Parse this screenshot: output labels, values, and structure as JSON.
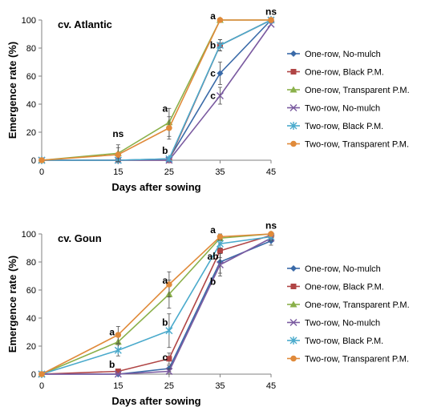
{
  "colors": {
    "one_row_no_mulch": "#3a6aa8",
    "one_row_black": "#b04545",
    "one_row_transparent": "#8ab04a",
    "two_row_no_mulch": "#7a5aa0",
    "two_row_black": "#4aaacc",
    "two_row_transparent": "#e08a3a"
  },
  "chart_data": [
    {
      "type": "line",
      "title": "cv. Atlantic",
      "xlabel": "Days after sowing",
      "ylabel": "Emergence rate (%)",
      "x": [
        0,
        15,
        25,
        35,
        45
      ],
      "xlim": [
        0,
        45
      ],
      "ylim": [
        0,
        100
      ],
      "xticks": [
        "0",
        "15",
        "25",
        "35",
        "45"
      ],
      "yticks": [
        "0",
        "20",
        "40",
        "60",
        "80",
        "100"
      ],
      "grid": false,
      "legend_position": "right",
      "series": [
        {
          "name": "One-row, No-mulch",
          "marker": "diamond",
          "color_key": "one_row_no_mulch",
          "values": [
            0,
            0,
            1,
            62,
            100
          ],
          "errors": [
            0,
            0,
            0,
            8,
            0
          ]
        },
        {
          "name": "One-row, Black P.M.",
          "marker": "square",
          "color_key": "one_row_black",
          "values": [
            0,
            0,
            0,
            82,
            100
          ],
          "errors": [
            0,
            0,
            0,
            4,
            0
          ]
        },
        {
          "name": "One-row, Transparent P.M.",
          "marker": "triangle",
          "color_key": "one_row_transparent",
          "values": [
            0,
            5,
            27,
            100,
            100
          ],
          "errors": [
            0,
            6,
            10,
            0,
            0
          ]
        },
        {
          "name": "Two-row, No-mulch",
          "marker": "x",
          "color_key": "two_row_no_mulch",
          "values": [
            0,
            0,
            0,
            46,
            97
          ],
          "errors": [
            0,
            0,
            0,
            6,
            0
          ]
        },
        {
          "name": "Two-row, Black P.M.",
          "marker": "star",
          "color_key": "two_row_black",
          "values": [
            0,
            0,
            1,
            82,
            100
          ],
          "errors": [
            0,
            0,
            0,
            4,
            0
          ]
        },
        {
          "name": "Two-row, Transparent P.M.",
          "marker": "circle",
          "color_key": "two_row_transparent",
          "values": [
            0,
            4,
            23,
            100,
            100
          ],
          "errors": [
            0,
            5,
            8,
            0,
            0
          ]
        }
      ],
      "annotations": [
        {
          "text": "ns",
          "x": 15,
          "y": 19
        },
        {
          "text": "a",
          "x": 24.2,
          "y": 37
        },
        {
          "text": "b",
          "x": 24.2,
          "y": 7
        },
        {
          "text": "a",
          "x": 33.6,
          "y": 103
        },
        {
          "text": "b",
          "x": 33.6,
          "y": 82
        },
        {
          "text": "c",
          "x": 33.6,
          "y": 62
        },
        {
          "text": "c",
          "x": 33.6,
          "y": 46
        },
        {
          "text": "ns",
          "x": 45,
          "y": 106
        }
      ]
    },
    {
      "type": "line",
      "title": "cv. Goun",
      "xlabel": "Days after sowing",
      "ylabel": "Emergence rate (%)",
      "x": [
        0,
        15,
        25,
        35,
        45
      ],
      "xlim": [
        0,
        45
      ],
      "ylim": [
        0,
        100
      ],
      "xticks": [
        "0",
        "15",
        "25",
        "35",
        "45"
      ],
      "yticks": [
        "0",
        "20",
        "40",
        "60",
        "80",
        "100"
      ],
      "grid": false,
      "legend_position": "right",
      "series": [
        {
          "name": "One-row, No-mulch",
          "marker": "diamond",
          "color_key": "one_row_no_mulch",
          "values": [
            0,
            0,
            4,
            80,
            95
          ],
          "errors": [
            0,
            0,
            2,
            8,
            3
          ]
        },
        {
          "name": "One-row, Black P.M.",
          "marker": "square",
          "color_key": "one_row_black",
          "values": [
            0,
            2,
            11,
            88,
            99
          ],
          "errors": [
            0,
            1,
            4,
            5,
            2
          ]
        },
        {
          "name": "One-row, Transparent P.M.",
          "marker": "triangle",
          "color_key": "one_row_transparent",
          "values": [
            0,
            23,
            57,
            97,
            100
          ],
          "errors": [
            0,
            5,
            10,
            2,
            0
          ]
        },
        {
          "name": "Two-row, No-mulch",
          "marker": "x",
          "color_key": "two_row_no_mulch",
          "values": [
            0,
            0,
            2,
            78,
            97
          ],
          "errors": [
            0,
            0,
            2,
            8,
            2
          ]
        },
        {
          "name": "Two-row, Black P.M.",
          "marker": "star",
          "color_key": "two_row_black",
          "values": [
            0,
            17,
            31,
            93,
            98
          ],
          "errors": [
            0,
            4,
            12,
            3,
            2
          ]
        },
        {
          "name": "Two-row, Transparent P.M.",
          "marker": "circle",
          "color_key": "two_row_transparent",
          "values": [
            0,
            28,
            64,
            98,
            100
          ],
          "errors": [
            0,
            6,
            9,
            2,
            0
          ]
        }
      ],
      "annotations": [
        {
          "text": "a",
          "x": 13.8,
          "y": 30
        },
        {
          "text": "b",
          "x": 13.8,
          "y": 7
        },
        {
          "text": "a",
          "x": 24.2,
          "y": 67
        },
        {
          "text": "b",
          "x": 24.2,
          "y": 37
        },
        {
          "text": "c",
          "x": 24.2,
          "y": 12
        },
        {
          "text": "a",
          "x": 33.6,
          "y": 103
        },
        {
          "text": "ab",
          "x": 33.6,
          "y": 84
        },
        {
          "text": "b",
          "x": 33.6,
          "y": 66
        },
        {
          "text": "ns",
          "x": 45,
          "y": 106
        }
      ]
    }
  ]
}
